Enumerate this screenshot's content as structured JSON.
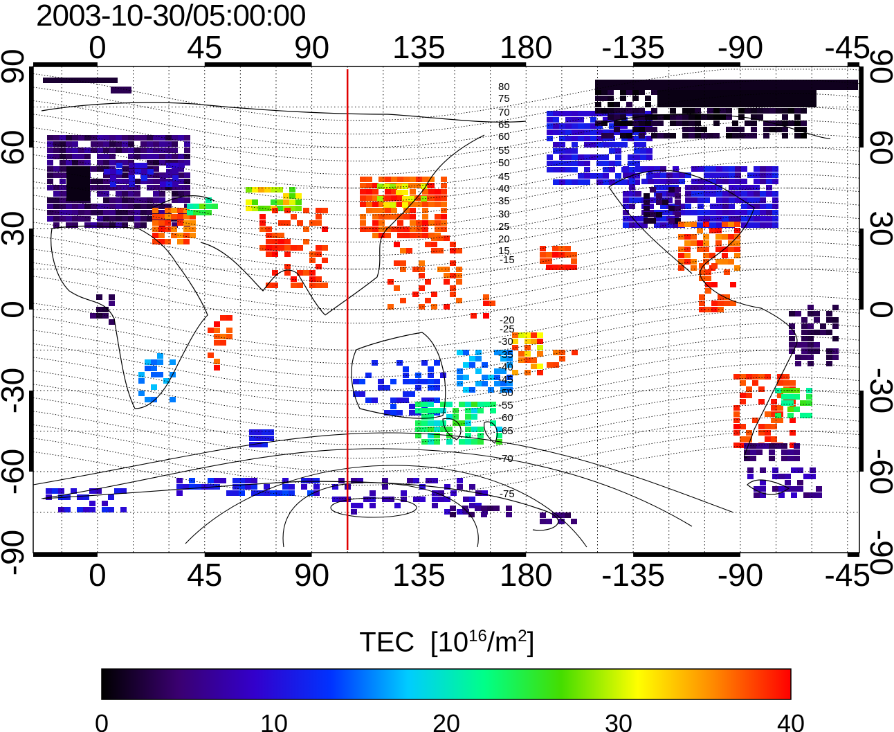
{
  "title": "2003-10-30/05:00:00",
  "map": {
    "lon_ticks_top": [
      "0",
      "45",
      "90",
      "135",
      "180",
      "-135",
      "-90",
      "-45"
    ],
    "lon_ticks_bottom": [
      "0",
      "45",
      "90",
      "135",
      "180",
      "-135",
      "-90",
      "-45"
    ],
    "lat_ticks_left": [
      "90",
      "60",
      "30",
      "0",
      "-30",
      "-60",
      "-90"
    ],
    "lat_ticks_right": [
      "90",
      "60",
      "30",
      "0",
      "-30",
      "-60",
      "-90"
    ],
    "contour_labels": [
      "80",
      "75",
      "70",
      "65",
      "60",
      "55",
      "50",
      "45",
      "40",
      "35",
      "30",
      "25",
      "20",
      "15",
      "-15",
      "-20",
      "-25",
      "-30",
      "-35",
      "-40",
      "-45",
      "-50",
      "-55",
      "-60",
      "-65",
      "-70",
      "-75"
    ],
    "meridian_lon": 105,
    "meridian_color": "#e00000",
    "lon_range": [
      -27,
      320
    ],
    "lat_range": [
      -90,
      90
    ]
  },
  "colorbar": {
    "label": "TEC",
    "unit_base": "[10",
    "unit_exp": "16",
    "unit_mid": "/m",
    "unit_exp2": "2",
    "unit_end": "]",
    "ticks": [
      "0",
      "10",
      "20",
      "30",
      "40"
    ],
    "range": [
      0,
      40
    ],
    "colors": [
      "#000000",
      "#3a0070",
      "#3300cc",
      "#0033ff",
      "#00ccff",
      "#00ff88",
      "#44dd00",
      "#ffff00",
      "#ff8800",
      "#ff0000"
    ]
  }
}
